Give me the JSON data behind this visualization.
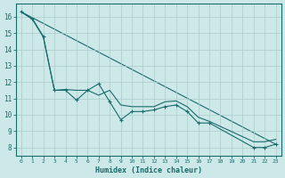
{
  "xlabel": "Humidex (Indice chaleur)",
  "bg_color": "#cce8e8",
  "line_color": "#1a6b6b",
  "grid_color": "#aacccc",
  "xlim": [
    -0.5,
    23.5
  ],
  "ylim": [
    7.5,
    16.8
  ],
  "yticks": [
    8,
    9,
    10,
    11,
    12,
    13,
    14,
    15,
    16
  ],
  "xticks": [
    0,
    1,
    2,
    3,
    4,
    5,
    6,
    7,
    8,
    9,
    10,
    11,
    12,
    13,
    14,
    15,
    16,
    17,
    18,
    19,
    20,
    21,
    22,
    23
  ],
  "line_straight": {
    "x": [
      0,
      23
    ],
    "y": [
      16.3,
      8.2
    ]
  },
  "line_zigzag": {
    "x": [
      0,
      1,
      2,
      3,
      4,
      5,
      6,
      7,
      8,
      9,
      10,
      11,
      12,
      13,
      14,
      15,
      16,
      17,
      21,
      22,
      23
    ],
    "y": [
      16.3,
      15.9,
      14.8,
      11.5,
      11.5,
      10.9,
      11.5,
      11.9,
      10.8,
      9.7,
      10.2,
      10.2,
      10.3,
      10.5,
      10.6,
      10.2,
      9.5,
      9.5,
      8.0,
      8.0,
      8.2
    ]
  },
  "line_upper": {
    "x": [
      0,
      1,
      2,
      3,
      4,
      5,
      6,
      7,
      8,
      9,
      10,
      11,
      12,
      13,
      14,
      15,
      16,
      17,
      21,
      22,
      23
    ],
    "y": [
      16.3,
      15.85,
      14.75,
      11.5,
      11.55,
      11.5,
      11.5,
      11.2,
      11.5,
      10.6,
      10.5,
      10.5,
      10.5,
      10.8,
      10.85,
      10.5,
      9.85,
      9.6,
      8.35,
      8.35,
      8.5
    ]
  }
}
